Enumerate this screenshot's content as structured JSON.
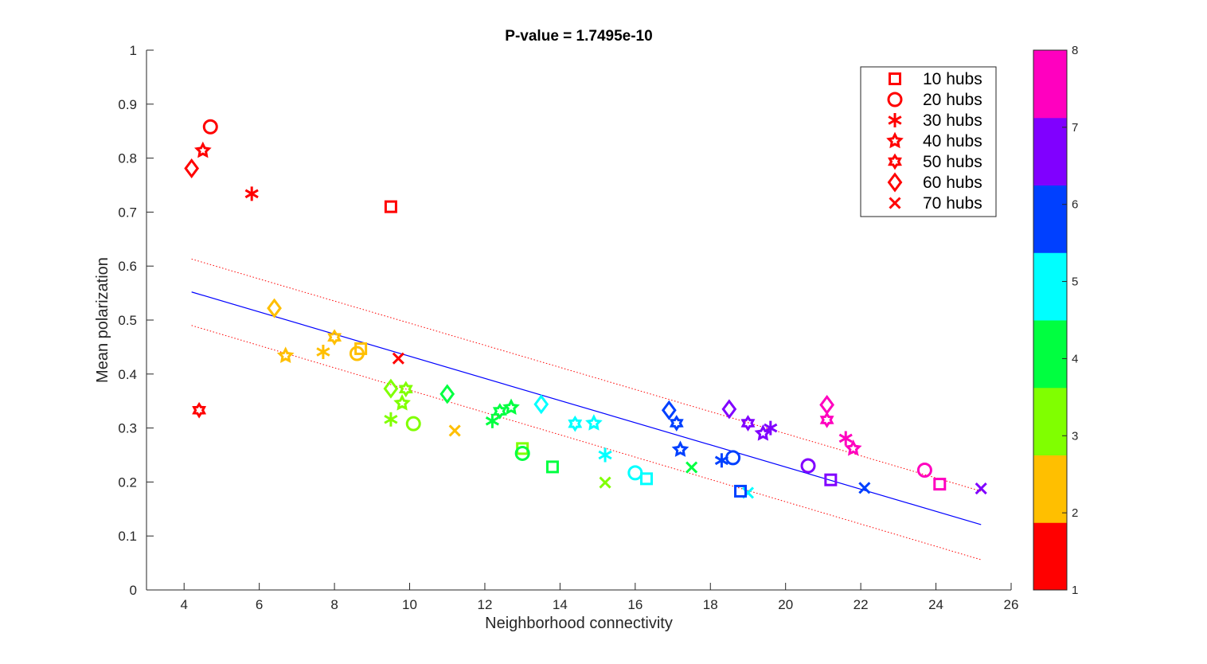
{
  "chart_data": {
    "type": "scatter",
    "title": "P-value = 1.7495e-10",
    "xlabel": "Neighborhood connectivity",
    "ylabel": "Mean polarization",
    "xlim": [
      3,
      26
    ],
    "ylim": [
      0,
      1
    ],
    "xticks": [
      4,
      6,
      8,
      10,
      12,
      14,
      16,
      18,
      20,
      22,
      24,
      26
    ],
    "yticks": [
      0,
      0.1,
      0.2,
      0.3,
      0.4,
      0.5,
      0.6,
      0.7,
      0.8,
      0.9,
      1
    ],
    "grid": false,
    "legend_position": "top-right",
    "markers": {
      "square": "10 hubs",
      "circle": "20 hubs",
      "asterisk": "30 hubs",
      "pentagram": "40 hubs",
      "hexagram": "50 hubs",
      "diamond": "60 hubs",
      "x": "70 hubs"
    },
    "legend": [
      {
        "marker": "square",
        "label": "10 hubs"
      },
      {
        "marker": "circle",
        "label": "20 hubs"
      },
      {
        "marker": "asterisk",
        "label": "30 hubs"
      },
      {
        "marker": "pentagram",
        "label": "40 hubs"
      },
      {
        "marker": "hexagram",
        "label": "50 hubs"
      },
      {
        "marker": "diamond",
        "label": "60 hubs"
      },
      {
        "marker": "x",
        "label": "70 hubs"
      }
    ],
    "colorbar": {
      "range": [
        1,
        8
      ],
      "ticks": [
        1,
        2,
        3,
        4,
        5,
        6,
        7,
        8
      ],
      "colors": [
        "#ff0000",
        "#ffbf00",
        "#80ff00",
        "#00ff40",
        "#00ffff",
        "#0040ff",
        "#8000ff",
        "#ff00bf"
      ]
    },
    "fit_line": {
      "x": [
        4.2,
        25.2
      ],
      "y": [
        0.552,
        0.121
      ]
    },
    "confidence_upper": {
      "x": [
        4.2,
        25.2
      ],
      "y": [
        0.613,
        0.183
      ]
    },
    "confidence_lower": {
      "x": [
        4.2,
        25.2
      ],
      "y": [
        0.49,
        0.056
      ]
    },
    "points": [
      {
        "x": 9.5,
        "y": 0.71,
        "marker": "square",
        "c": 1
      },
      {
        "x": 4.7,
        "y": 0.858,
        "marker": "circle",
        "c": 1
      },
      {
        "x": 5.8,
        "y": 0.734,
        "marker": "asterisk",
        "c": 1
      },
      {
        "x": 4.5,
        "y": 0.814,
        "marker": "pentagram",
        "c": 1
      },
      {
        "x": 4.4,
        "y": 0.333,
        "marker": "hexagram",
        "c": 1
      },
      {
        "x": 4.2,
        "y": 0.781,
        "marker": "diamond",
        "c": 1
      },
      {
        "x": 9.7,
        "y": 0.429,
        "marker": "x",
        "c": 1
      },
      {
        "x": 8.7,
        "y": 0.447,
        "marker": "square",
        "c": 2
      },
      {
        "x": 8.6,
        "y": 0.438,
        "marker": "circle",
        "c": 2
      },
      {
        "x": 7.7,
        "y": 0.441,
        "marker": "asterisk",
        "c": 2
      },
      {
        "x": 6.7,
        "y": 0.434,
        "marker": "pentagram",
        "c": 2
      },
      {
        "x": 8.0,
        "y": 0.468,
        "marker": "hexagram",
        "c": 2
      },
      {
        "x": 6.4,
        "y": 0.522,
        "marker": "diamond",
        "c": 2
      },
      {
        "x": 11.2,
        "y": 0.295,
        "marker": "x",
        "c": 2
      },
      {
        "x": 13.0,
        "y": 0.262,
        "marker": "square",
        "c": 3
      },
      {
        "x": 10.1,
        "y": 0.308,
        "marker": "circle",
        "c": 3
      },
      {
        "x": 9.5,
        "y": 0.316,
        "marker": "asterisk",
        "c": 3
      },
      {
        "x": 9.8,
        "y": 0.346,
        "marker": "pentagram",
        "c": 3
      },
      {
        "x": 9.9,
        "y": 0.372,
        "marker": "hexagram",
        "c": 3
      },
      {
        "x": 9.5,
        "y": 0.373,
        "marker": "diamond",
        "c": 3
      },
      {
        "x": 15.2,
        "y": 0.199,
        "marker": "x",
        "c": 3
      },
      {
        "x": 13.8,
        "y": 0.228,
        "marker": "square",
        "c": 4
      },
      {
        "x": 13.0,
        "y": 0.253,
        "marker": "circle",
        "c": 4
      },
      {
        "x": 12.2,
        "y": 0.313,
        "marker": "asterisk",
        "c": 4
      },
      {
        "x": 12.7,
        "y": 0.338,
        "marker": "pentagram",
        "c": 4
      },
      {
        "x": 12.4,
        "y": 0.331,
        "marker": "hexagram",
        "c": 4
      },
      {
        "x": 11.0,
        "y": 0.363,
        "marker": "diamond",
        "c": 4
      },
      {
        "x": 17.5,
        "y": 0.227,
        "marker": "x",
        "c": 4
      },
      {
        "x": 16.3,
        "y": 0.206,
        "marker": "square",
        "c": 5
      },
      {
        "x": 16.0,
        "y": 0.217,
        "marker": "circle",
        "c": 5
      },
      {
        "x": 15.2,
        "y": 0.25,
        "marker": "asterisk",
        "c": 5
      },
      {
        "x": 14.9,
        "y": 0.309,
        "marker": "pentagram",
        "c": 5
      },
      {
        "x": 14.4,
        "y": 0.308,
        "marker": "hexagram",
        "c": 5
      },
      {
        "x": 13.5,
        "y": 0.344,
        "marker": "diamond",
        "c": 5
      },
      {
        "x": 19.0,
        "y": 0.18,
        "marker": "x",
        "c": 5
      },
      {
        "x": 18.8,
        "y": 0.183,
        "marker": "square",
        "c": 6
      },
      {
        "x": 18.6,
        "y": 0.245,
        "marker": "circle",
        "c": 6
      },
      {
        "x": 18.3,
        "y": 0.24,
        "marker": "asterisk",
        "c": 6
      },
      {
        "x": 17.2,
        "y": 0.26,
        "marker": "pentagram",
        "c": 6
      },
      {
        "x": 17.1,
        "y": 0.309,
        "marker": "hexagram",
        "c": 6
      },
      {
        "x": 16.9,
        "y": 0.333,
        "marker": "diamond",
        "c": 6
      },
      {
        "x": 22.1,
        "y": 0.189,
        "marker": "x",
        "c": 6
      },
      {
        "x": 21.2,
        "y": 0.204,
        "marker": "square",
        "c": 7
      },
      {
        "x": 20.6,
        "y": 0.23,
        "marker": "circle",
        "c": 7
      },
      {
        "x": 19.6,
        "y": 0.3,
        "marker": "asterisk",
        "c": 7
      },
      {
        "x": 19.4,
        "y": 0.29,
        "marker": "pentagram",
        "c": 7
      },
      {
        "x": 19.0,
        "y": 0.309,
        "marker": "hexagram",
        "c": 7
      },
      {
        "x": 18.5,
        "y": 0.335,
        "marker": "diamond",
        "c": 7
      },
      {
        "x": 25.2,
        "y": 0.188,
        "marker": "x",
        "c": 7
      },
      {
        "x": 24.1,
        "y": 0.196,
        "marker": "square",
        "c": 8
      },
      {
        "x": 23.7,
        "y": 0.222,
        "marker": "circle",
        "c": 8
      },
      {
        "x": 21.6,
        "y": 0.281,
        "marker": "asterisk",
        "c": 8
      },
      {
        "x": 21.8,
        "y": 0.262,
        "marker": "pentagram",
        "c": 8
      },
      {
        "x": 21.1,
        "y": 0.315,
        "marker": "hexagram",
        "c": 8
      },
      {
        "x": 21.1,
        "y": 0.343,
        "marker": "diamond",
        "c": 8
      }
    ]
  }
}
